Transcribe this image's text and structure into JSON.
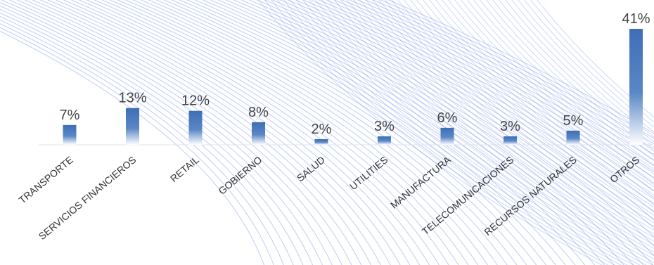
{
  "chart_data": {
    "type": "bar",
    "categories": [
      "TRANSPORTE",
      "SERVICIOS FINANCIEROS",
      "RETAIL",
      "GOBIERNO",
      "SALUD",
      "UTILITIES",
      "MANUFACTURA",
      "TELECOMUNICACIONES",
      "RECURSOS NATURALES",
      "OTROS"
    ],
    "values": [
      7,
      13,
      12,
      8,
      2,
      3,
      6,
      3,
      5,
      41
    ],
    "value_labels": [
      "7%",
      "13%",
      "12%",
      "8%",
      "2%",
      "3%",
      "6%",
      "3%",
      "5%",
      "41%"
    ],
    "title": "",
    "xlabel": "",
    "ylabel": "",
    "ylim": [
      0,
      41
    ],
    "grid": false,
    "legend": "none"
  },
  "colors": {
    "bar_top": "#3d6fb6",
    "bar_bottom": "#ffffff",
    "background_lines": "#6f8ff0",
    "axis_line": "#dde3ec"
  }
}
